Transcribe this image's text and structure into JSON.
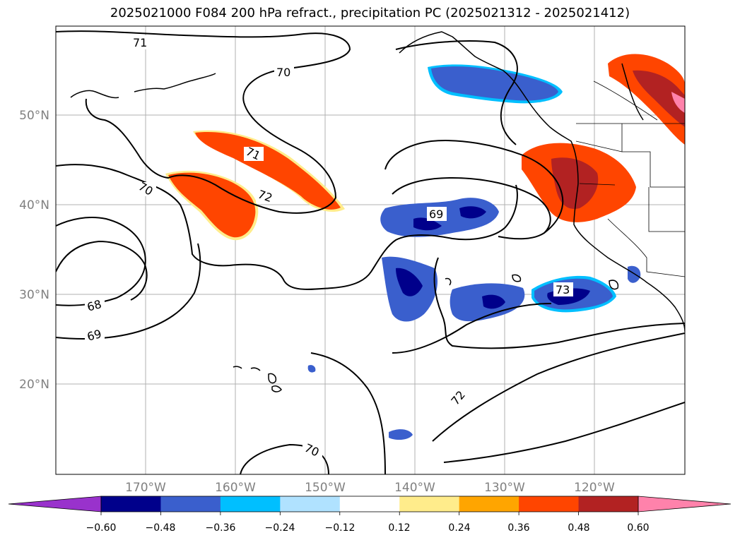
{
  "title": "2025021000 F084 200 hPa refract., precipitation PC (2025021312 - 2025021412)",
  "lat_labels": [
    "50°N",
    "40°N",
    "30°N",
    "20°N"
  ],
  "lon_labels": [
    "170°W",
    "160°W",
    "150°W",
    "140°W",
    "130°W",
    "120°W"
  ],
  "contour_labels": [
    "71",
    "70",
    "71",
    "72",
    "70",
    "69",
    "73",
    "68",
    "69",
    "72",
    "70"
  ],
  "colorbar": {
    "colors": [
      "#9932CC",
      "#00008B",
      "#3A5FCD",
      "#00BFFF",
      "#B0E2FF",
      "#FFFFFF",
      "#FFEC8B",
      "#FFA500",
      "#FF4500",
      "#B22222",
      "#FF82AB"
    ],
    "labels": [
      "−0.60",
      "−0.48",
      "−0.36",
      "−0.24",
      "−0.12",
      "0.12",
      "0.24",
      "0.36",
      "0.48",
      "0.60"
    ]
  }
}
